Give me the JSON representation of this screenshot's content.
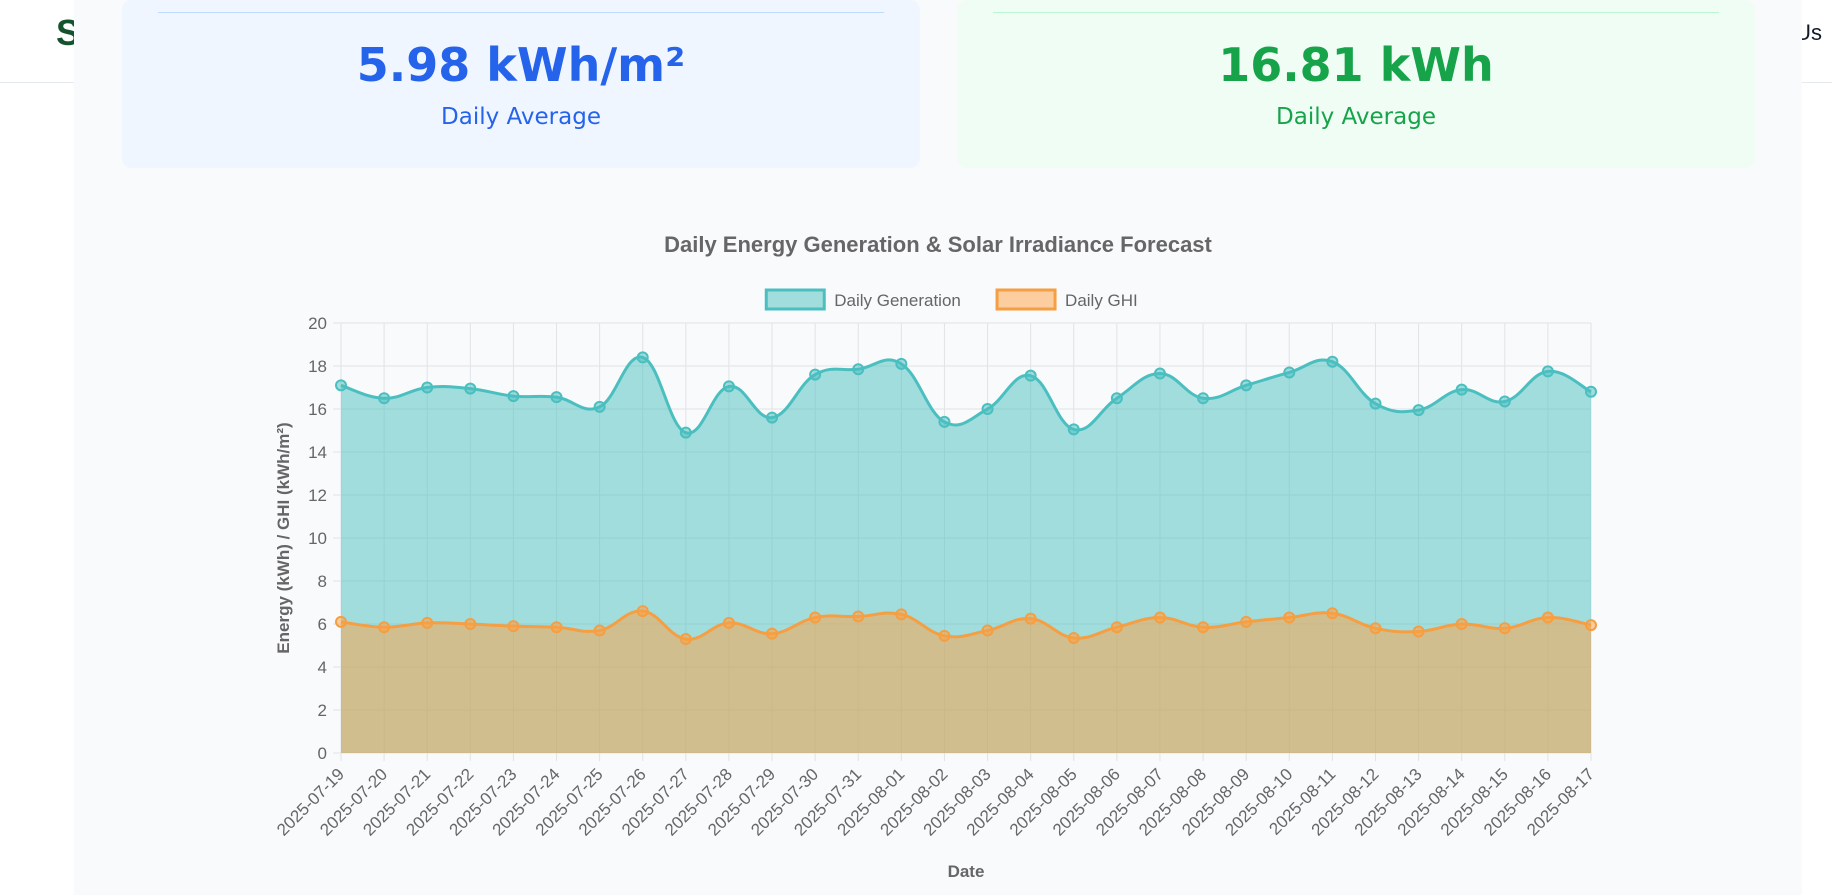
{
  "header": {
    "brand_letter": "S",
    "nav_fragment": "Us"
  },
  "cards": [
    {
      "value": "5.98 kWh/m²",
      "label": "Daily Average",
      "color": "#2563eb",
      "bg": "#eff6ff"
    },
    {
      "value": "16.81 kWh",
      "label": "Daily Average",
      "color": "#16a34a",
      "bg": "#f0fdf4"
    }
  ],
  "chart_data": {
    "type": "area",
    "title": "Daily Energy Generation & Solar Irradiance Forecast",
    "xlabel": "Date",
    "ylabel": "Energy (kWh) / GHI (kWh/m²)",
    "ylim": [
      0,
      20
    ],
    "yticks": [
      0,
      2,
      4,
      6,
      8,
      10,
      12,
      14,
      16,
      18,
      20
    ],
    "grid": true,
    "legend_position": "top",
    "categories": [
      "2025-07-19",
      "2025-07-20",
      "2025-07-21",
      "2025-07-22",
      "2025-07-23",
      "2025-07-24",
      "2025-07-25",
      "2025-07-26",
      "2025-07-27",
      "2025-07-28",
      "2025-07-29",
      "2025-07-30",
      "2025-07-31",
      "2025-08-01",
      "2025-08-02",
      "2025-08-03",
      "2025-08-04",
      "2025-08-05",
      "2025-08-06",
      "2025-08-07",
      "2025-08-08",
      "2025-08-09",
      "2025-08-10",
      "2025-08-11",
      "2025-08-12",
      "2025-08-13",
      "2025-08-14",
      "2025-08-15",
      "2025-08-16",
      "2025-08-17"
    ],
    "series": [
      {
        "name": "Daily Generation",
        "line_color": "#4bbfbf",
        "fill_color": "rgba(75,192,192,0.5)",
        "values": [
          17.1,
          16.5,
          17.0,
          16.95,
          16.6,
          16.55,
          16.1,
          18.4,
          14.9,
          17.05,
          15.6,
          17.6,
          17.85,
          18.1,
          15.4,
          16.0,
          17.55,
          15.05,
          16.5,
          17.65,
          16.5,
          17.1,
          17.7,
          18.2,
          16.25,
          15.95,
          16.9,
          16.35,
          17.75,
          16.8
        ]
      },
      {
        "name": "Daily GHI",
        "line_color": "#f59e42",
        "fill_color": "rgba(255,159,64,0.5)",
        "values": [
          6.1,
          5.85,
          6.05,
          6.0,
          5.9,
          5.85,
          5.7,
          6.6,
          5.3,
          6.05,
          5.55,
          6.3,
          6.35,
          6.45,
          5.45,
          5.7,
          6.25,
          5.35,
          5.85,
          6.3,
          5.85,
          6.1,
          6.3,
          6.5,
          5.8,
          5.65,
          6.0,
          5.8,
          6.3,
          5.95
        ]
      }
    ]
  }
}
